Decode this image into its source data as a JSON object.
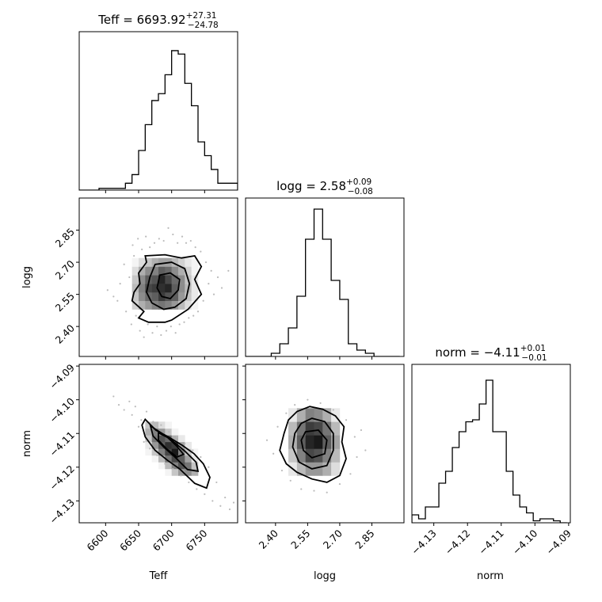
{
  "chart_data": [
    {
      "type": "histogram",
      "panel": "teff-hist",
      "parameter": "Teff",
      "title": {
        "label": "Teff",
        "value": "6693.92",
        "plus": "+27.31",
        "minus": "−24.78"
      },
      "xlim": [
        6560,
        6800
      ],
      "bin_edges": [
        6560,
        6570,
        6580,
        6590,
        6600,
        6610,
        6620,
        6630,
        6640,
        6650,
        6660,
        6670,
        6680,
        6690,
        6700,
        6710,
        6720,
        6730,
        6740,
        6750,
        6760,
        6770,
        6780,
        6790,
        6800
      ],
      "counts": [
        0,
        0,
        0,
        1,
        1,
        1,
        1,
        4,
        9,
        23,
        38,
        52,
        56,
        67,
        81,
        79,
        62,
        49,
        28,
        20,
        12,
        4,
        4,
        4
      ],
      "ylim": [
        0,
        92
      ],
      "xticks": [
        6600,
        6650,
        6700,
        6750
      ]
    },
    {
      "type": "histogram",
      "panel": "logg-hist",
      "parameter": "logg",
      "title": {
        "label": "logg",
        "value": "2.58",
        "plus": "+0.09",
        "minus": "−0.08"
      },
      "xlim": [
        2.26,
        3.0
      ],
      "bin_edges": [
        2.26,
        2.3,
        2.34,
        2.38,
        2.42,
        2.46,
        2.5,
        2.54,
        2.58,
        2.62,
        2.66,
        2.7,
        2.74,
        2.78,
        2.82,
        2.86,
        2.9,
        2.94,
        2.98
      ],
      "counts": [
        0,
        0,
        0,
        2,
        8,
        18,
        38,
        74,
        93,
        74,
        48,
        36,
        8,
        4,
        2,
        0,
        0,
        0
      ],
      "ylim": [
        0,
        100
      ],
      "xticks": [
        2.4,
        2.55,
        2.7,
        2.85
      ]
    },
    {
      "type": "histogram",
      "panel": "norm-hist",
      "parameter": "norm",
      "title": {
        "label": "norm",
        "value": "−4.11",
        "plus": "+0.01",
        "minus": "−0.01"
      },
      "xlim": [
        -4.1365,
        -4.0895
      ],
      "bin_edges": [
        -4.1365,
        -4.1345,
        -4.1325,
        -4.1305,
        -4.1285,
        -4.1265,
        -4.1245,
        -4.1225,
        -4.1205,
        -4.1185,
        -4.1165,
        -4.1145,
        -4.1125,
        -4.1105,
        -4.1085,
        -4.1065,
        -4.1045,
        -4.1025,
        -4.1005,
        -4.0985,
        -4.0965,
        -4.0945,
        -4.0925,
        -4.0905
      ],
      "counts": [
        4,
        2,
        8,
        8,
        20,
        26,
        38,
        46,
        51,
        52,
        60,
        72,
        46,
        46,
        26,
        14,
        8,
        5,
        1,
        2,
        2,
        1,
        0
      ],
      "ylim": [
        0,
        80
      ],
      "xticks": [
        -4.13,
        -4.12,
        -4.11,
        -4.1,
        -4.09
      ]
    },
    {
      "type": "heatmap",
      "panel": "teff-logg-2d",
      "x_parameter": "Teff",
      "y_parameter": "logg",
      "xlim": [
        6560,
        6800
      ],
      "ylim": [
        2.26,
        3.0
      ],
      "yticks": [
        2.4,
        2.55,
        2.7,
        2.85
      ],
      "x_edges": [
        6640,
        6650,
        6660,
        6670,
        6680,
        6690,
        6700,
        6710,
        6720,
        6730,
        6740
      ],
      "y_edges": [
        2.48,
        2.52,
        2.56,
        2.6,
        2.64,
        2.68,
        2.72
      ],
      "density": [
        [
          0.2,
          0.35,
          0.45,
          0.55,
          0.6,
          0.55,
          0.45,
          0.3,
          0.15,
          0.05
        ],
        [
          0.25,
          0.5,
          0.65,
          0.7,
          0.85,
          0.75,
          0.7,
          0.45,
          0.25,
          0.1
        ],
        [
          0.3,
          0.55,
          0.8,
          0.85,
          0.9,
          0.95,
          0.7,
          0.5,
          0.3,
          0.1
        ],
        [
          0.25,
          0.5,
          0.7,
          0.75,
          0.95,
          0.8,
          0.65,
          0.5,
          0.25,
          0.1
        ],
        [
          0.15,
          0.35,
          0.5,
          0.55,
          0.7,
          0.65,
          0.5,
          0.35,
          0.2,
          0.05
        ],
        [
          0.05,
          0.15,
          0.25,
          0.35,
          0.4,
          0.4,
          0.3,
          0.2,
          0.1,
          0.05
        ]
      ],
      "contours": [
        [
          [
            6660,
            2.73
          ],
          [
            6690,
            2.735
          ],
          [
            6715,
            2.72
          ],
          [
            6735,
            2.73
          ],
          [
            6745,
            2.68
          ],
          [
            6735,
            2.62
          ],
          [
            6745,
            2.55
          ],
          [
            6725,
            2.48
          ],
          [
            6700,
            2.43
          ],
          [
            6690,
            2.42
          ],
          [
            6665,
            2.42
          ],
          [
            6650,
            2.44
          ],
          [
            6658,
            2.47
          ],
          [
            6640,
            2.52
          ],
          [
            6643,
            2.56
          ],
          [
            6652,
            2.6
          ],
          [
            6650,
            2.65
          ],
          [
            6662,
            2.7
          ]
        ],
        [
          [
            6675,
            2.69
          ],
          [
            6700,
            2.7
          ],
          [
            6720,
            2.67
          ],
          [
            6727,
            2.6
          ],
          [
            6722,
            2.53
          ],
          [
            6705,
            2.49
          ],
          [
            6688,
            2.48
          ],
          [
            6670,
            2.51
          ],
          [
            6662,
            2.56
          ],
          [
            6667,
            2.63
          ]
        ],
        [
          [
            6682,
            2.64
          ],
          [
            6698,
            2.65
          ],
          [
            6712,
            2.62
          ],
          [
            6710,
            2.57
          ],
          [
            6698,
            2.53
          ],
          [
            6685,
            2.54
          ],
          [
            6678,
            2.58
          ]
        ]
      ],
      "scatter_points": [
        [
          6603,
          2.57
        ],
        [
          6612,
          2.54
        ],
        [
          6618,
          2.52
        ],
        [
          6622,
          2.6
        ],
        [
          6628,
          2.69
        ],
        [
          6631,
          2.47
        ],
        [
          6636,
          2.63
        ],
        [
          6639,
          2.41
        ],
        [
          6641,
          2.78
        ],
        [
          6643,
          2.73
        ],
        [
          6646,
          2.45
        ],
        [
          6649,
          2.81
        ],
        [
          6652,
          2.38
        ],
        [
          6655,
          2.76
        ],
        [
          6658,
          2.35
        ],
        [
          6661,
          2.82
        ],
        [
          6664,
          2.41
        ],
        [
          6667,
          2.77
        ],
        [
          6671,
          2.37
        ],
        [
          6674,
          2.79
        ],
        [
          6678,
          2.4
        ],
        [
          6681,
          2.81
        ],
        [
          6684,
          2.36
        ],
        [
          6688,
          2.8
        ],
        [
          6692,
          2.38
        ],
        [
          6695,
          2.86
        ],
        [
          6699,
          2.4
        ],
        [
          6702,
          2.83
        ],
        [
          6706,
          2.37
        ],
        [
          6709,
          2.79
        ],
        [
          6712,
          2.41
        ],
        [
          6716,
          2.82
        ],
        [
          6719,
          2.42
        ],
        [
          6722,
          2.79
        ],
        [
          6726,
          2.44
        ],
        [
          6729,
          2.8
        ],
        [
          6733,
          2.45
        ],
        [
          6736,
          2.77
        ],
        [
          6740,
          2.47
        ],
        [
          6744,
          2.75
        ],
        [
          6748,
          2.52
        ],
        [
          6752,
          2.7
        ],
        [
          6756,
          2.6
        ],
        [
          6760,
          2.66
        ],
        [
          6764,
          2.55
        ],
        [
          6770,
          2.63
        ],
        [
          6776,
          2.58
        ],
        [
          6786,
          2.66
        ]
      ]
    },
    {
      "type": "heatmap",
      "panel": "teff-norm-2d",
      "x_parameter": "Teff",
      "y_parameter": "norm",
      "xlim": [
        6560,
        6800
      ],
      "ylim": [
        -4.1365,
        -4.0895
      ],
      "yticks": [
        -4.13,
        -4.12,
        -4.11,
        -4.1,
        -4.09
      ],
      "x_edges": [
        6660,
        6670,
        6680,
        6690,
        6700,
        6710,
        6720,
        6730,
        6740
      ],
      "y_edges": [
        -4.1225,
        -4.1205,
        -4.1185,
        -4.1165,
        -4.1145,
        -4.1125,
        -4.1105,
        -4.1085,
        -4.1065
      ],
      "density": [
        [
          0.0,
          0.0,
          0.0,
          0.05,
          0.25,
          0.45,
          0.5,
          0.35
        ],
        [
          0.0,
          0.0,
          0.05,
          0.3,
          0.55,
          0.75,
          0.6,
          0.25
        ],
        [
          0.0,
          0.05,
          0.3,
          0.6,
          0.8,
          0.7,
          0.4,
          0.1
        ],
        [
          0.05,
          0.25,
          0.55,
          0.8,
          1.0,
          0.55,
          0.25,
          0.05
        ],
        [
          0.1,
          0.45,
          0.7,
          0.9,
          0.85,
          0.4,
          0.1,
          0.0
        ],
        [
          0.25,
          0.6,
          0.75,
          0.65,
          0.35,
          0.1,
          0.0,
          0.0
        ],
        [
          0.35,
          0.55,
          0.45,
          0.25,
          0.05,
          0.0,
          0.0,
          0.0
        ],
        [
          0.25,
          0.3,
          0.15,
          0.05,
          0.0,
          0.0,
          0.0,
          0.0
        ]
      ],
      "contours": [
        [
          [
            6660,
            -4.1058
          ],
          [
            6676,
            -4.109
          ],
          [
            6695,
            -4.111
          ],
          [
            6716,
            -4.1135
          ],
          [
            6734,
            -4.116
          ],
          [
            6748,
            -4.119
          ],
          [
            6758,
            -4.123
          ],
          [
            6753,
            -4.1262
          ],
          [
            6735,
            -4.1248
          ],
          [
            6712,
            -4.1205
          ],
          [
            6694,
            -4.118
          ],
          [
            6675,
            -4.115
          ],
          [
            6660,
            -4.111
          ],
          [
            6655,
            -4.1075
          ]
        ],
        [
          [
            6668,
            -4.1078
          ],
          [
            6684,
            -4.1098
          ],
          [
            6700,
            -4.112
          ],
          [
            6720,
            -4.1152
          ],
          [
            6737,
            -4.1185
          ],
          [
            6740,
            -4.1212
          ],
          [
            6724,
            -4.1207
          ],
          [
            6705,
            -4.117
          ],
          [
            6688,
            -4.114
          ],
          [
            6672,
            -4.1108
          ]
        ],
        [
          [
            6680,
            -4.1098
          ],
          [
            6694,
            -4.1112
          ],
          [
            6708,
            -4.1138
          ],
          [
            6718,
            -4.1162
          ],
          [
            6708,
            -4.117
          ],
          [
            6692,
            -4.1145
          ],
          [
            6680,
            -4.112
          ]
        ]
      ],
      "scatter_points": [
        [
          6612,
          -4.099
        ],
        [
          6620,
          -4.1015
        ],
        [
          6628,
          -4.103
        ],
        [
          6636,
          -4.1005
        ],
        [
          6640,
          -4.1045
        ],
        [
          6645,
          -4.102
        ],
        [
          6650,
          -4.108
        ],
        [
          6654,
          -4.106
        ],
        [
          6658,
          -4.1125
        ],
        [
          6662,
          -4.1035
        ],
        [
          6667,
          -4.1145
        ],
        [
          6672,
          -4.1065
        ],
        [
          6678,
          -4.1165
        ],
        [
          6684,
          -4.1075
        ],
        [
          6690,
          -4.119
        ],
        [
          6696,
          -4.1095
        ],
        [
          6702,
          -4.1205
        ],
        [
          6708,
          -4.111
        ],
        [
          6714,
          -4.1225
        ],
        [
          6720,
          -4.113
        ],
        [
          6726,
          -4.1245
        ],
        [
          6732,
          -4.115
        ],
        [
          6738,
          -4.1265
        ],
        [
          6744,
          -4.117
        ],
        [
          6750,
          -4.128
        ],
        [
          6756,
          -4.12
        ],
        [
          6762,
          -4.13
        ],
        [
          6768,
          -4.1245
        ],
        [
          6774,
          -4.1315
        ],
        [
          6781,
          -4.129
        ],
        [
          6788,
          -4.1325
        ],
        [
          6794,
          -4.1305
        ]
      ]
    },
    {
      "type": "heatmap",
      "panel": "logg-norm-2d",
      "x_parameter": "logg",
      "y_parameter": "norm",
      "xlim": [
        2.26,
        3.0
      ],
      "ylim": [
        -4.1365,
        -4.0895
      ],
      "x_edges": [
        2.46,
        2.5,
        2.54,
        2.58,
        2.62,
        2.66,
        2.7
      ],
      "y_edges": [
        -4.1225,
        -4.1185,
        -4.1145,
        -4.1105,
        -4.1065,
        -4.1025
      ],
      "density": [
        [
          0.1,
          0.3,
          0.45,
          0.45,
          0.35,
          0.15
        ],
        [
          0.25,
          0.55,
          0.8,
          0.75,
          0.55,
          0.3
        ],
        [
          0.35,
          0.7,
          0.95,
          1.0,
          0.7,
          0.4
        ],
        [
          0.3,
          0.6,
          0.85,
          0.8,
          0.6,
          0.3
        ],
        [
          0.1,
          0.35,
          0.55,
          0.5,
          0.35,
          0.1
        ]
      ],
      "contours": [
        [
          [
            2.5,
            -4.1035
          ],
          [
            2.56,
            -4.102
          ],
          [
            2.62,
            -4.1028
          ],
          [
            2.68,
            -4.1048
          ],
          [
            2.72,
            -4.108
          ],
          [
            2.71,
            -4.1125
          ],
          [
            2.73,
            -4.1175
          ],
          [
            2.7,
            -4.1225
          ],
          [
            2.64,
            -4.1245
          ],
          [
            2.57,
            -4.1235
          ],
          [
            2.5,
            -4.1215
          ],
          [
            2.45,
            -4.119
          ],
          [
            2.42,
            -4.115
          ],
          [
            2.44,
            -4.11
          ],
          [
            2.46,
            -4.106
          ]
        ],
        [
          [
            2.52,
            -4.107
          ],
          [
            2.57,
            -4.1055
          ],
          [
            2.63,
            -4.1065
          ],
          [
            2.67,
            -4.11
          ],
          [
            2.67,
            -4.115
          ],
          [
            2.64,
            -4.1195
          ],
          [
            2.57,
            -4.1205
          ],
          [
            2.51,
            -4.1185
          ],
          [
            2.48,
            -4.114
          ],
          [
            2.49,
            -4.11
          ]
        ],
        [
          [
            2.54,
            -4.1095
          ],
          [
            2.6,
            -4.109
          ],
          [
            2.64,
            -4.112
          ],
          [
            2.63,
            -4.116
          ],
          [
            2.57,
            -4.1172
          ],
          [
            2.53,
            -4.115
          ],
          [
            2.52,
            -4.112
          ]
        ]
      ],
      "scatter_points": [
        [
          2.36,
          -4.112
        ],
        [
          2.39,
          -4.116
        ],
        [
          2.41,
          -4.108
        ],
        [
          2.43,
          -4.121
        ],
        [
          2.45,
          -4.104
        ],
        [
          2.47,
          -4.124
        ],
        [
          2.49,
          -4.1015
        ],
        [
          2.52,
          -4.1265
        ],
        [
          2.55,
          -4.1
        ],
        [
          2.58,
          -4.127
        ],
        [
          2.61,
          -4.101
        ],
        [
          2.64,
          -4.1275
        ],
        [
          2.67,
          -4.103
        ],
        [
          2.7,
          -4.125
        ],
        [
          2.73,
          -4.106
        ],
        [
          2.75,
          -4.122
        ],
        [
          2.77,
          -4.111
        ],
        [
          2.78,
          -4.117
        ],
        [
          2.8,
          -4.109
        ],
        [
          2.82,
          -4.115
        ]
      ]
    }
  ],
  "axis_labels": {
    "teff_x": "Teff",
    "logg_y": "logg",
    "logg_x": "logg",
    "norm_y": "norm",
    "norm_x": "norm"
  }
}
